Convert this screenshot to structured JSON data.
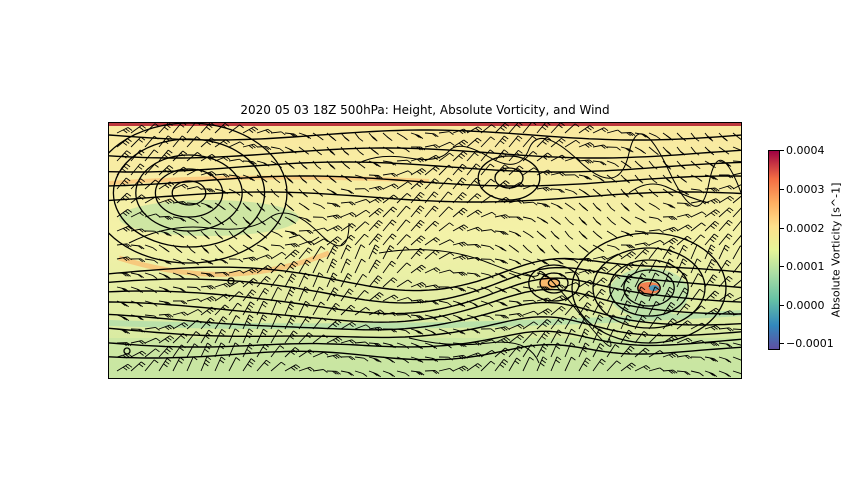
{
  "title": "2020 05 03 18Z 500hPa: Height, Absolute Vorticity, and Wind",
  "colorbar": {
    "label": "Absolute Vorticity [s^-1]",
    "colormap": "Spectral_r",
    "ticks": [
      "0.0004",
      "0.0003",
      "0.0002",
      "0.0001",
      "0.0000",
      "−0.0001"
    ],
    "colors": [
      "#5e4fa2",
      "#3288bd",
      "#66c2a5",
      "#abdda4",
      "#e6f598",
      "#fee08b",
      "#fdae61",
      "#f46d43",
      "#9e0142"
    ]
  },
  "map": {
    "background_color": "#f4f0a8",
    "contour_color": "#000000",
    "coastline_color": "#000000",
    "layers": [
      "geopotential-height-contours",
      "absolute-vorticity-shading",
      "wind-barbs",
      "coastlines"
    ]
  }
}
